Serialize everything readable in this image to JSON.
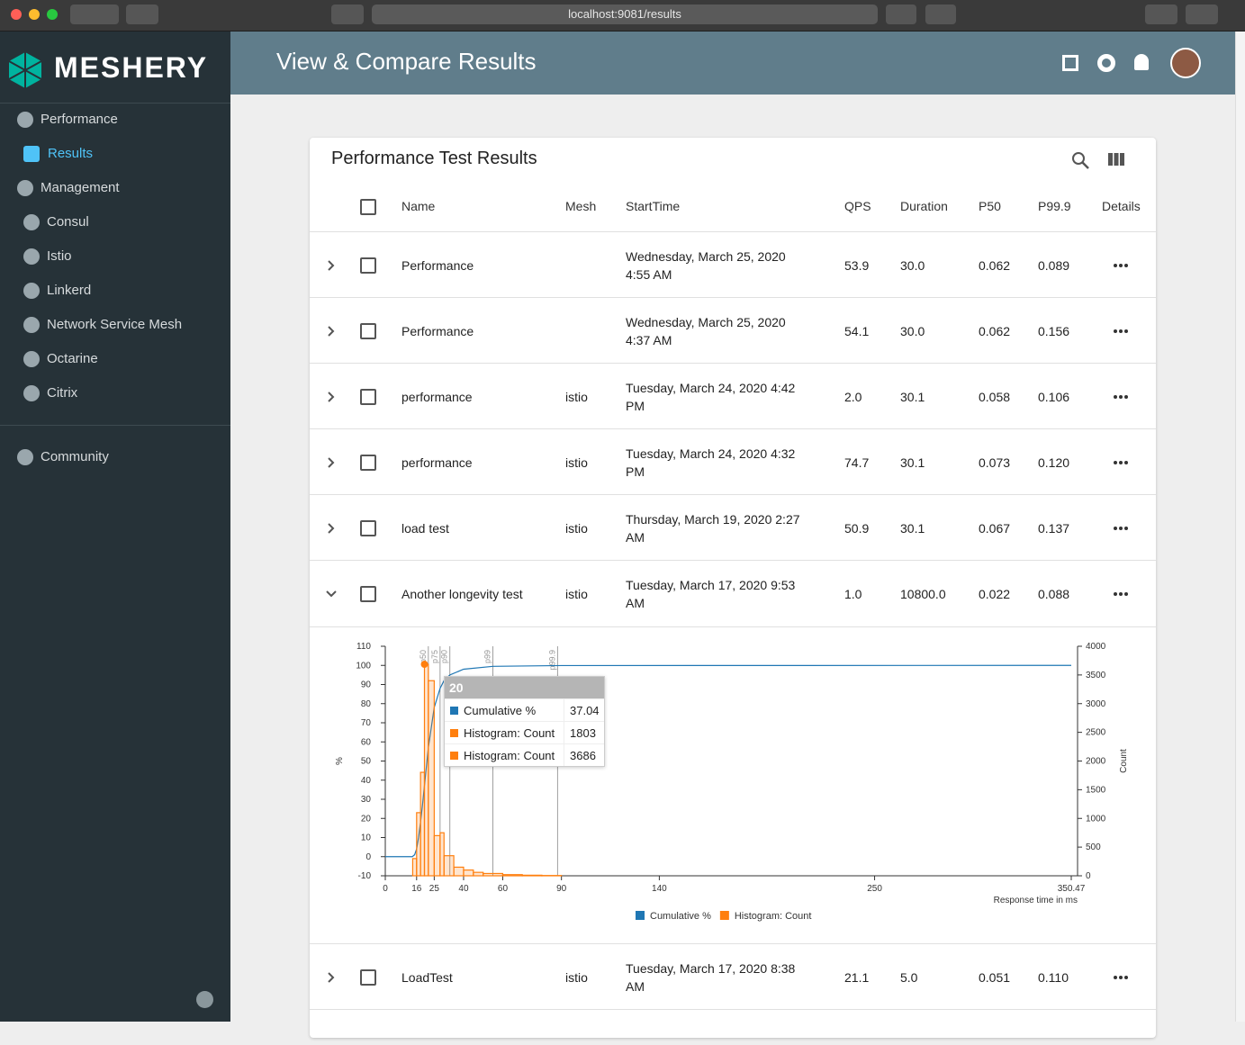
{
  "browser": {
    "url": "localhost:9081/results"
  },
  "sidebar": {
    "brand": "MESHERY",
    "nav": [
      "Performance",
      "Results",
      "Management",
      "Consul",
      "Istio",
      "Linkerd",
      "Network Service Mesh",
      "Octarine",
      "Citrix",
      "Community"
    ]
  },
  "header": {
    "title": "View & Compare Results"
  },
  "table": {
    "title": "Performance Test Results",
    "columns": [
      "Name",
      "Mesh",
      "StartTime",
      "QPS",
      "Duration",
      "P50",
      "P99.9",
      "Details"
    ],
    "rows": [
      [
        "Performance",
        null,
        "Wednesday, March 25, 2020 4:55 AM",
        "53.9",
        "30.0",
        "0.062",
        "0.089"
      ],
      [
        "Performance",
        null,
        "Wednesday, March 25, 2020 4:37 AM",
        "54.1",
        "30.0",
        "0.062",
        "0.156"
      ],
      [
        "performance",
        "istio",
        "Tuesday, March 24, 2020 4:42 PM",
        "2.0",
        "30.1",
        "0.058",
        "0.106"
      ],
      [
        "performance",
        "istio",
        "Tuesday, March 24, 2020 4:32 PM",
        "74.7",
        "30.1",
        "0.073",
        "0.120"
      ],
      [
        "load test",
        "istio",
        "Thursday, March 19, 2020 2:27 AM",
        "50.9",
        "30.1",
        "0.067",
        "0.137"
      ],
      [
        "Another longevity test",
        "istio",
        "Tuesday, March 17, 2020 9:53 AM",
        "1.0",
        "10800.0",
        "0.022",
        "0.088"
      ],
      [
        "LoadTest",
        "istio",
        "Tuesday, March 17, 2020 8:38 AM",
        "21.1",
        "5.0",
        "0.051",
        "0.110"
      ]
    ]
  },
  "chart_data": {
    "type": "histogram",
    "xlabel": "Response time in ms",
    "ylabel": "%",
    "y2label": "Count",
    "xlim": [
      0,
      350.47
    ],
    "xticks": [
      0,
      16,
      25,
      40,
      60,
      90,
      140,
      250,
      350.47
    ],
    "ylim": [
      -10,
      110
    ],
    "yticks": [
      -10,
      0,
      10,
      20,
      30,
      40,
      50,
      60,
      70,
      80,
      90,
      100,
      110
    ],
    "y2lim": [
      0,
      4000
    ],
    "y2ticks": [
      0,
      500,
      1000,
      1500,
      2000,
      2500,
      3000,
      3500,
      4000
    ],
    "series": [
      {
        "name": "Cumulative %",
        "color": "#1f77b4",
        "x": [
          0,
          13.8,
          15,
          16,
          17,
          18,
          19,
          20,
          22,
          25,
          28,
          30,
          33,
          40,
          55,
          90,
          350.47
        ],
        "values": [
          0,
          0,
          1,
          4,
          10,
          18,
          27,
          37.04,
          57,
          78,
          88,
          92,
          95,
          98,
          99.5,
          99.9,
          100
        ]
      },
      {
        "name": "Histogram: Count",
        "color": "#ff7f0e",
        "axis": "y2",
        "bins": [
          14,
          16,
          18,
          20,
          22,
          25,
          28,
          30,
          35,
          40,
          45,
          50,
          60,
          70,
          80,
          90
        ],
        "values": [
          300,
          1100,
          1803,
          3686,
          3400,
          700,
          750,
          350,
          150,
          100,
          60,
          40,
          20,
          10,
          5
        ]
      }
    ],
    "percentiles": [
      {
        "label": "p50",
        "value": 22
      },
      {
        "label": "p75",
        "value": 28
      },
      {
        "label": "p90",
        "value": 33
      },
      {
        "label": "p99",
        "value": 55
      },
      {
        "label": "p99.9",
        "value": 88
      }
    ],
    "tooltip": {
      "title": 20,
      "rows": [
        {
          "label": "Cumulative %",
          "value": 37.04
        },
        {
          "label": "Histogram: Count",
          "value": 1803
        },
        {
          "label": "Histogram: Count",
          "value": 3686
        }
      ]
    }
  }
}
